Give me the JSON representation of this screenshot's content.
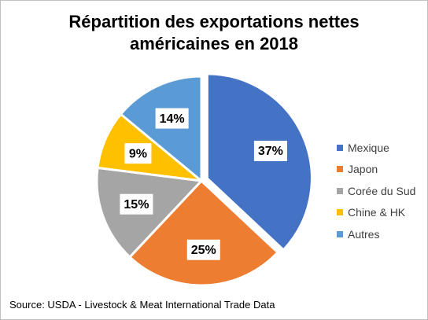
{
  "chart_data": {
    "type": "pie",
    "title": [
      "Répartition des exportations nettes",
      "américaines en 2018"
    ],
    "slices": [
      {
        "name": "Mexique",
        "value": 37,
        "label": "37%",
        "color": "#4472C4",
        "explode": 1
      },
      {
        "name": "Japon",
        "value": 25,
        "label": "25%",
        "color": "#ED7D31",
        "explode": 0
      },
      {
        "name": "Corée du Sud",
        "value": 15,
        "label": "15%",
        "color": "#A5A5A5",
        "explode": 0
      },
      {
        "name": "Chine & HK",
        "value": 9,
        "label": "9%",
        "color": "#FFC000",
        "explode": 0
      },
      {
        "name": "Autres",
        "value": 14,
        "label": "14%",
        "color": "#5B9BD5",
        "explode": 0
      }
    ],
    "legend_position": "right"
  },
  "source": "Source: USDA - Livestock & Meat International Trade Data"
}
